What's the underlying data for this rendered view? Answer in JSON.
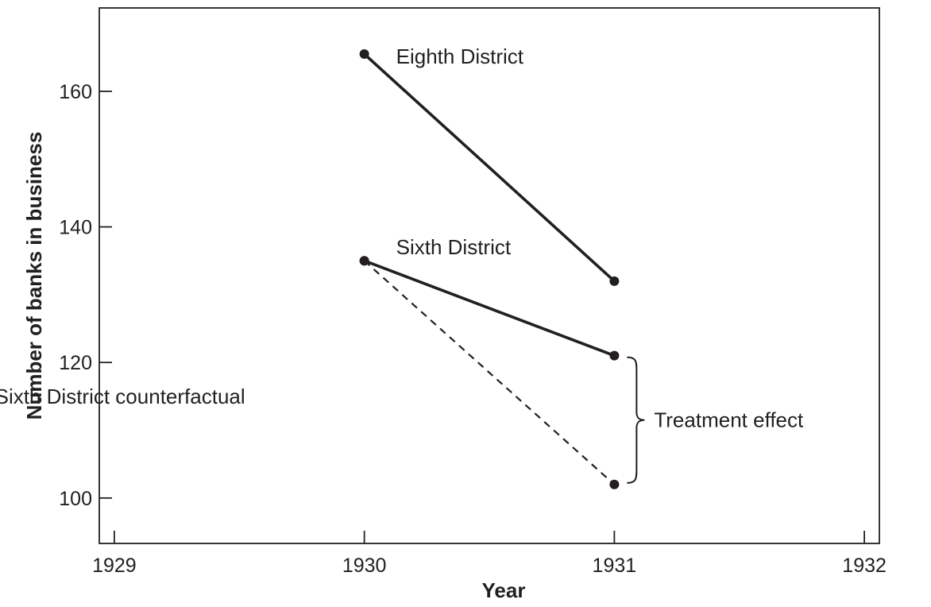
{
  "chart_data": {
    "type": "line",
    "xlabel": "Year",
    "ylabel": "Number of banks in business",
    "xlim": [
      1928.94,
      1932.06
    ],
    "ylim": [
      93.3,
      172.3
    ],
    "x_ticks": [
      1929,
      1930,
      1931,
      1932
    ],
    "x_tick_labels": [
      "1929",
      "1930",
      "1931",
      "1932"
    ],
    "y_ticks": [
      100,
      120,
      140,
      160
    ],
    "y_tick_labels": [
      "100",
      "120",
      "140",
      "160"
    ],
    "grid": false,
    "legend": "none",
    "series": [
      {
        "name": "Eighth District",
        "style": "solid",
        "color": "#231f20",
        "points": [
          {
            "x": 1930,
            "y": 165.5
          },
          {
            "x": 1931,
            "y": 132
          }
        ]
      },
      {
        "name": "Sixth District",
        "style": "solid",
        "color": "#231f20",
        "points": [
          {
            "x": 1930,
            "y": 135
          },
          {
            "x": 1931,
            "y": 121
          }
        ]
      },
      {
        "name": "Sixth District counterfactual",
        "style": "dashed",
        "color": "#231f20",
        "points": [
          {
            "x": 1930,
            "y": 135
          },
          {
            "x": 1931,
            "y": 102
          }
        ]
      }
    ],
    "annotations": [
      {
        "text": "Treatment effect",
        "x": 1931,
        "y_from": 102,
        "y_to": 121
      }
    ]
  }
}
